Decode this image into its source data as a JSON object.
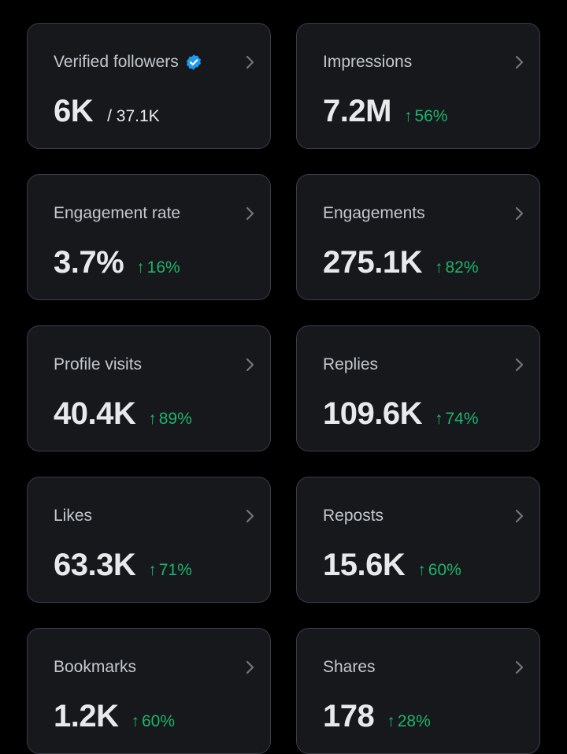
{
  "colors": {
    "background": "#000000",
    "card": "#16181c",
    "card_border": "#3a3d43",
    "title": "#c4c8cc",
    "value": "#e7e9ea",
    "positive": "#1fb26b",
    "verified_badge": "#1d9bf0"
  },
  "icons": {
    "verified": "verified-badge-icon",
    "chevron": "chevron-right-icon",
    "up_arrow": "arrow-up-icon"
  },
  "cards": [
    {
      "label": "Verified followers",
      "value": "6K",
      "sub": "/ 37.1K"
    },
    {
      "label": "Impressions",
      "value": "7.2M",
      "change": "56%"
    },
    {
      "label": "Engagement rate",
      "value": "3.7%",
      "change": "16%"
    },
    {
      "label": "Engagements",
      "value": "275.1K",
      "change": "82%"
    },
    {
      "label": "Profile visits",
      "value": "40.4K",
      "change": "89%"
    },
    {
      "label": "Replies",
      "value": "109.6K",
      "change": "74%"
    },
    {
      "label": "Likes",
      "value": "63.3K",
      "change": "71%"
    },
    {
      "label": "Reposts",
      "value": "15.6K",
      "change": "60%"
    },
    {
      "label": "Bookmarks",
      "value": "1.2K",
      "change": "60%"
    },
    {
      "label": "Shares",
      "value": "178",
      "change": "28%"
    }
  ],
  "arrow_glyph": "↑"
}
